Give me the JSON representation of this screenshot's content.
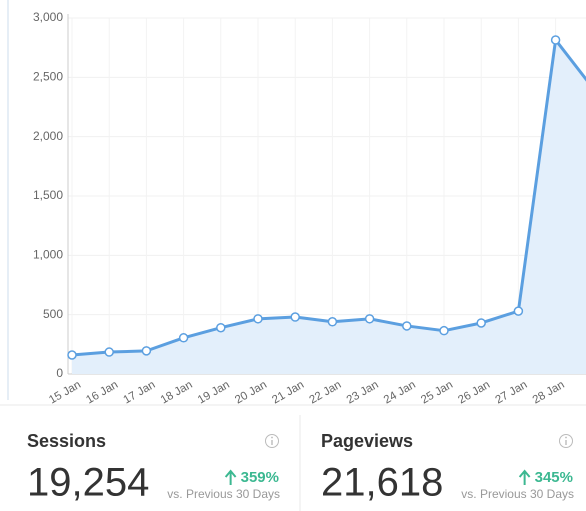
{
  "chart_data": {
    "type": "line",
    "categories": [
      "15 Jan",
      "16 Jan",
      "17 Jan",
      "18 Jan",
      "19 Jan",
      "20 Jan",
      "21 Jan",
      "22 Jan",
      "23 Jan",
      "24 Jan",
      "25 Jan",
      "26 Jan",
      "27 Jan",
      "28 Jan",
      null
    ],
    "values": [
      160,
      185,
      195,
      305,
      390,
      465,
      480,
      440,
      465,
      405,
      365,
      430,
      530,
      2815,
      2410
    ],
    "color": "#5b9fe0",
    "area_color": "#e3effb",
    "ylim": [
      0,
      3000
    ],
    "yticks": [
      0,
      500,
      {
        "value": 1000,
        "label": "1,000"
      },
      {
        "value": 1500,
        "label": "1,500"
      },
      {
        "value": 2000,
        "label": "2,000"
      },
      {
        "value": 2500,
        "label": "2,500"
      },
      {
        "value": 3000,
        "label": "3,000"
      }
    ],
    "grid": true
  },
  "stats": [
    {
      "title": "Sessions",
      "value": "19,254",
      "change": "359%",
      "comparison": "vs. Previous 30 Days"
    },
    {
      "title": "Pageviews",
      "value": "21,618",
      "change": "345%",
      "comparison": "vs. Previous 30 Days"
    }
  ]
}
